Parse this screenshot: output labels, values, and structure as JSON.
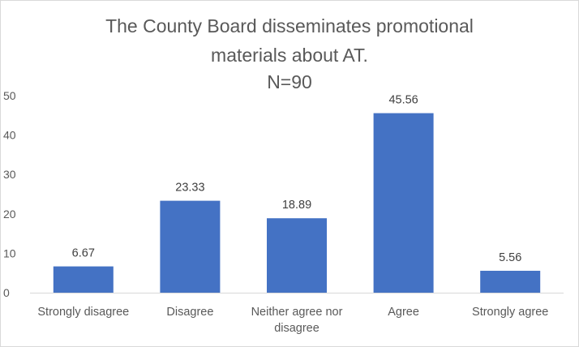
{
  "chart_data": {
    "type": "bar",
    "title_lines": [
      "The County Board disseminates promotional",
      "materials about AT.",
      "N=90"
    ],
    "categories": [
      [
        "Strongly disagree"
      ],
      [
        "Disagree"
      ],
      [
        "Neither agree nor",
        "disagree"
      ],
      [
        "Agree"
      ],
      [
        "Strongly agree"
      ]
    ],
    "values": [
      6.67,
      23.33,
      18.89,
      45.56,
      5.56
    ],
    "data_labels": [
      "6.67",
      "23.33",
      "18.89",
      "45.56",
      "5.56"
    ],
    "ylim": [
      0,
      50
    ],
    "yticks": [
      0,
      10,
      20,
      30,
      40,
      50
    ],
    "grid": false,
    "legend": "none",
    "bar_color": "#4472c4"
  }
}
